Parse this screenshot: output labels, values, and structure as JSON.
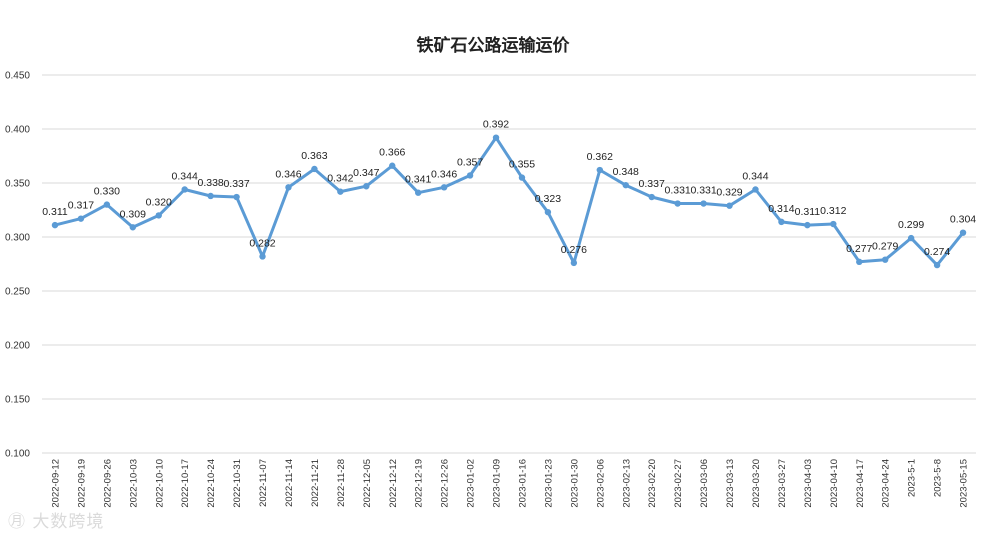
{
  "chart_data": {
    "type": "line",
    "title": "铁矿石公路运输运价",
    "xlabel": "",
    "ylabel": "",
    "ylim": [
      0.1,
      0.45
    ],
    "yticks": [
      "0.100",
      "0.150",
      "0.200",
      "0.250",
      "0.300",
      "0.350",
      "0.400",
      "0.450"
    ],
    "grid": true,
    "legend": "none",
    "line_color": "#5b9bd5",
    "categories": [
      "2022-09-12",
      "2022-09-19",
      "2022-09-26",
      "2022-10-03",
      "2022-10-10",
      "2022-10-17",
      "2022-10-24",
      "2022-10-31",
      "2022-11-07",
      "2022-11-14",
      "2022-11-21",
      "2022-11-28",
      "2022-12-05",
      "2022-12-12",
      "2022-12-19",
      "2022-12-26",
      "2023-01-02",
      "2023-01-09",
      "2023-01-16",
      "2023-01-23",
      "2023-01-30",
      "2023-02-06",
      "2023-02-13",
      "2023-02-20",
      "2023-02-27",
      "2023-03-06",
      "2023-03-13",
      "2023-03-20",
      "2023-03-27",
      "2023-04-03",
      "2023-04-10",
      "2023-04-17",
      "2023-04-24",
      "2023-5-1",
      "2023-5-8",
      "2023-05-15"
    ],
    "values": [
      0.311,
      0.317,
      0.33,
      0.309,
      0.32,
      0.344,
      0.338,
      0.337,
      0.282,
      0.346,
      0.363,
      0.342,
      0.347,
      0.366,
      0.341,
      0.346,
      0.357,
      0.392,
      0.355,
      0.323,
      0.276,
      0.362,
      0.348,
      0.337,
      0.331,
      0.331,
      0.329,
      0.344,
      0.314,
      0.311,
      0.312,
      0.277,
      0.279,
      0.299,
      0.274,
      0.304
    ],
    "data_labels": [
      "0.311",
      "0.317",
      "0.330",
      "0.309",
      "0.320",
      "0.344",
      "0.338",
      "0.337",
      "0.282",
      "0.346",
      "0.363",
      "0.342",
      "0.347",
      "0.366",
      "0.341",
      "0.346",
      "0.357",
      "0.392",
      "0.355",
      "0.323",
      "0.276",
      "0.362",
      "0.348",
      "0.337",
      "0.331",
      "0.331",
      "0.329",
      "0.344",
      "0.314",
      "0.311",
      "0.312",
      "0.277",
      "0.279",
      "0.299",
      "0.274",
      "0.304"
    ]
  },
  "watermark": "大数跨境"
}
